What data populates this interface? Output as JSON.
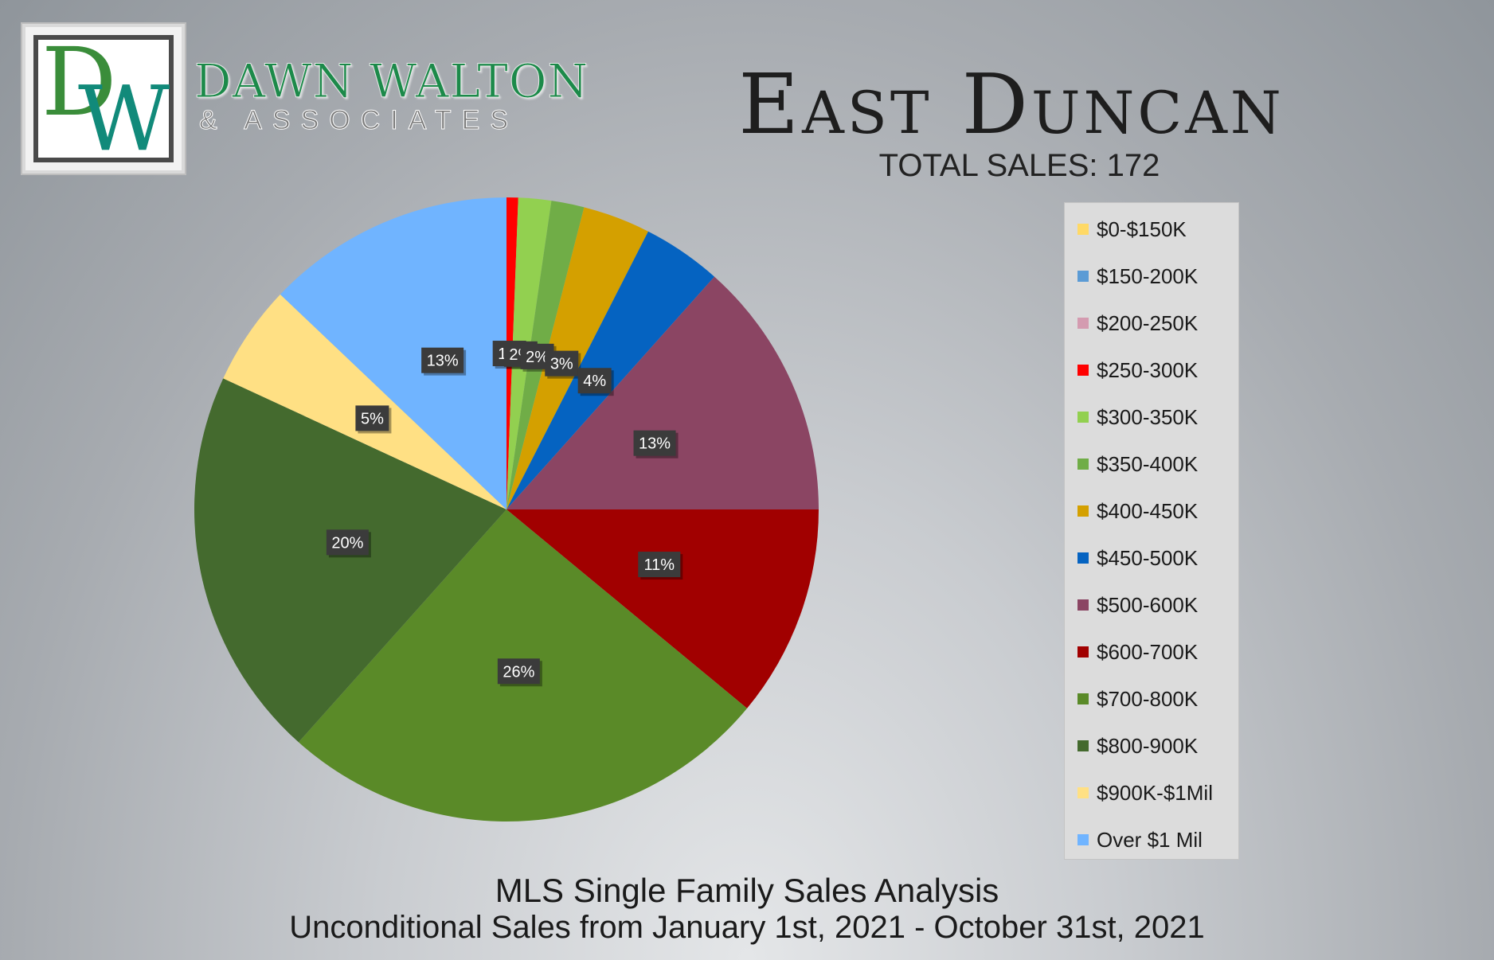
{
  "brand": {
    "logo_text": "DW",
    "name": "DAWN WALTON",
    "subtitle": "& ASSOCIATES"
  },
  "header": {
    "title": "East Duncan",
    "total_sales": "TOTAL SALES: 172"
  },
  "chart_data": {
    "type": "pie",
    "title": "East Duncan",
    "slices": [
      {
        "label": "$0-$150K",
        "percent": 0,
        "color": "#ffd966"
      },
      {
        "label": "$150-200K",
        "percent": 0,
        "color": "#5b9bd5"
      },
      {
        "label": "$200-250K",
        "percent": 0,
        "color": "#d49bb0"
      },
      {
        "label": "$250-300K",
        "percent": 0.6,
        "data_label": "1%",
        "color": "#ff0000"
      },
      {
        "label": "$300-350K",
        "percent": 1.7,
        "data_label": "2%",
        "color": "#92d050"
      },
      {
        "label": "$350-400K",
        "percent": 1.7,
        "data_label": "2%",
        "color": "#70ad47"
      },
      {
        "label": "$400-450K",
        "percent": 3.5,
        "data_label": "3%",
        "color": "#d4a000"
      },
      {
        "label": "$450-500K",
        "percent": 4.1,
        "data_label": "4%",
        "color": "#0563c1"
      },
      {
        "label": "$500-600K",
        "percent": 13.4,
        "data_label": "13%",
        "color": "#8b4563"
      },
      {
        "label": "$600-700K",
        "percent": 11.0,
        "data_label": "11%",
        "color": "#a10000"
      },
      {
        "label": "$700-800K",
        "percent": 25.6,
        "data_label": "26%",
        "color": "#5a8a28"
      },
      {
        "label": "$800-900K",
        "percent": 20.3,
        "data_label": "20%",
        "color": "#446a2e"
      },
      {
        "label": "$900K-$1Mil",
        "percent": 5.2,
        "data_label": "5%",
        "color": "#ffe084"
      },
      {
        "label": "Over $1 Mil",
        "percent": 12.9,
        "data_label": "13%",
        "color": "#70b4ff"
      }
    ],
    "legend_position": "right"
  },
  "footer": {
    "line1": "MLS Single Family Sales Analysis",
    "line2": "Unconditional Sales from January 1st, 2021 - October 31st, 2021"
  }
}
